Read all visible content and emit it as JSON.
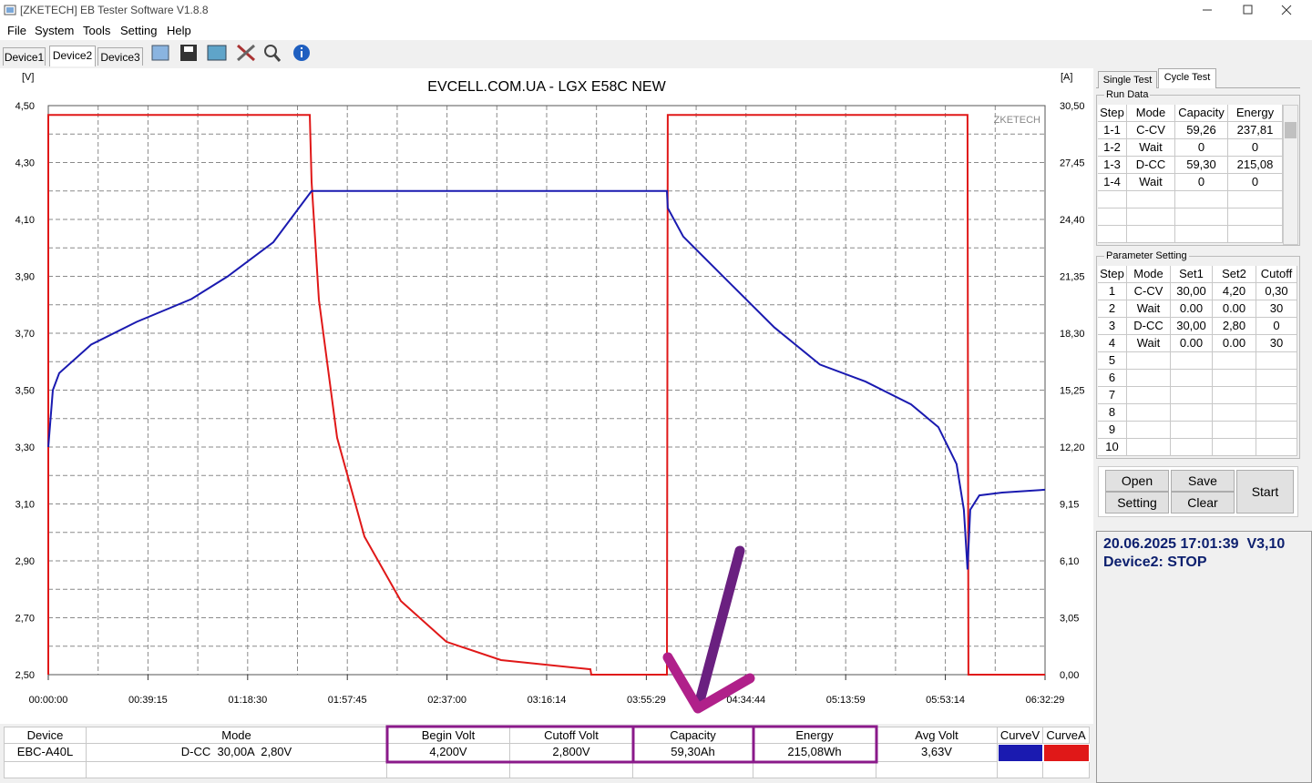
{
  "window": {
    "title": "[ZKETECH] EB Tester Software V1.8.8"
  },
  "menu": [
    "File",
    "System",
    "Tools",
    "Setting",
    "Help"
  ],
  "device_tabs": [
    "Device1",
    "Device2",
    "Device3"
  ],
  "chart_data": {
    "type": "line",
    "title": "EVCELL.COM.UA - LGX E58C NEW",
    "y_label": "[V]",
    "y2_label": "[A]",
    "watermark": "ZKETECH",
    "xlim": [
      0,
      23549
    ],
    "xticks": [
      {
        "value": 0,
        "label": "00:00:00"
      },
      {
        "value": 2355,
        "label": "00:39:15"
      },
      {
        "value": 4710,
        "label": "01:18:30"
      },
      {
        "value": 7065,
        "label": "01:57:45"
      },
      {
        "value": 9420,
        "label": "02:37:00"
      },
      {
        "value": 11774,
        "label": "03:16:14"
      },
      {
        "value": 14129,
        "label": "03:55:29"
      },
      {
        "value": 16484,
        "label": "04:34:44"
      },
      {
        "value": 18839,
        "label": "05:13:59"
      },
      {
        "value": 21194,
        "label": "05:53:14"
      },
      {
        "value": 23549,
        "label": "06:32:29"
      }
    ],
    "ylim": [
      2.5,
      4.5
    ],
    "yticks": [
      {
        "value": 2.5,
        "label": "2,50"
      },
      {
        "value": 2.7,
        "label": "2,70"
      },
      {
        "value": 2.9,
        "label": "2,90"
      },
      {
        "value": 3.1,
        "label": "3,10"
      },
      {
        "value": 3.3,
        "label": "3,30"
      },
      {
        "value": 3.5,
        "label": "3,50"
      },
      {
        "value": 3.7,
        "label": "3,70"
      },
      {
        "value": 3.9,
        "label": "3,90"
      },
      {
        "value": 4.1,
        "label": "4,10"
      },
      {
        "value": 4.3,
        "label": "4,30"
      },
      {
        "value": 4.5,
        "label": "4,50"
      }
    ],
    "y2lim": [
      0,
      30.5
    ],
    "y2ticks": [
      {
        "value": 0,
        "label": "0,00"
      },
      {
        "value": 3.05,
        "label": "3,05"
      },
      {
        "value": 6.1,
        "label": "6,10"
      },
      {
        "value": 9.15,
        "label": "9,15"
      },
      {
        "value": 12.2,
        "label": "12,20"
      },
      {
        "value": 15.25,
        "label": "15,25"
      },
      {
        "value": 18.3,
        "label": "18,30"
      },
      {
        "value": 21.35,
        "label": "21,35"
      },
      {
        "value": 24.4,
        "label": "24,40"
      },
      {
        "value": 27.45,
        "label": "27,45"
      },
      {
        "value": 30.5,
        "label": "30,50"
      }
    ],
    "grid": true,
    "minor_grid": true,
    "series": [
      {
        "name": "CurveV",
        "color": "#1a1ab0",
        "x": [
          0,
          108,
          258,
          1012,
          2088,
          3379,
          4240,
          5316,
          6220,
          14615,
          14636,
          15002,
          16078,
          17155,
          18231,
          19307,
          20383,
          21029,
          21459,
          21632,
          21718,
          21782,
          21997,
          22535,
          23547
        ],
        "values": [
          3.3,
          3.5,
          3.56,
          3.66,
          3.74,
          3.82,
          3.9,
          4.02,
          4.2,
          4.2,
          4.14,
          4.04,
          3.88,
          3.72,
          3.59,
          3.53,
          3.45,
          3.37,
          3.24,
          3.08,
          2.87,
          3.08,
          3.13,
          3.14,
          3.15
        ]
      },
      {
        "name": "CurveA",
        "color": "#e01818",
        "axis": "y2",
        "x": [
          0,
          0,
          6177,
          6220,
          6393,
          6823,
          7469,
          8330,
          9406,
          10697,
          12807,
          12829,
          14615,
          14636,
          21718,
          21739,
          23549
        ],
        "values": [
          0,
          30,
          30,
          26.4,
          20.1,
          12.7,
          7.4,
          3.95,
          1.76,
          0.78,
          0.29,
          0,
          0,
          30,
          30,
          0,
          0
        ]
      }
    ]
  },
  "right_tabs": [
    "Single Test",
    "Cycle Test"
  ],
  "run_data": {
    "title": "Run Data",
    "columns": [
      "Step",
      "Mode",
      "Capacity",
      "Energy"
    ],
    "rows": [
      [
        "1-1",
        "C-CV",
        "59,26",
        "237,81"
      ],
      [
        "1-2",
        "Wait",
        "0",
        "0"
      ],
      [
        "1-3",
        "D-CC",
        "59,30",
        "215,08"
      ],
      [
        "1-4",
        "Wait",
        "0",
        "0"
      ]
    ]
  },
  "parameter_setting": {
    "title": "Parameter Setting",
    "columns": [
      "Step",
      "Mode",
      "Set1",
      "Set2",
      "Cutoff"
    ],
    "rows": [
      [
        "1",
        "C-CV",
        "30,00",
        "4,20",
        "0,30"
      ],
      [
        "2",
        "Wait",
        "0.00",
        "0.00",
        "30"
      ],
      [
        "3",
        "D-CC",
        "30,00",
        "2,80",
        "0"
      ],
      [
        "4",
        "Wait",
        "0.00",
        "0.00",
        "30"
      ],
      [
        "5"
      ],
      [
        "6"
      ],
      [
        "7"
      ],
      [
        "8"
      ],
      [
        "9"
      ],
      [
        "10"
      ]
    ]
  },
  "buttons": {
    "open": "Open",
    "save": "Save",
    "setting": "Setting",
    "clear": "Clear",
    "start": "Start"
  },
  "status": {
    "line1": "20.06.2025 17:01:39  V3,10",
    "line2": "Device2: STOP"
  },
  "summary": {
    "columns": [
      "Device",
      "Mode",
      "Begin Volt",
      "Cutoff Volt",
      "Capacity",
      "Energy",
      "Avg Volt",
      "CurveV",
      "CurveA"
    ],
    "row": [
      "EBC-A40L",
      "D-CC  30,00A  2,80V",
      "4,200V",
      "2,800V",
      "59,30Ah",
      "215,08Wh",
      "3,63V"
    ]
  }
}
